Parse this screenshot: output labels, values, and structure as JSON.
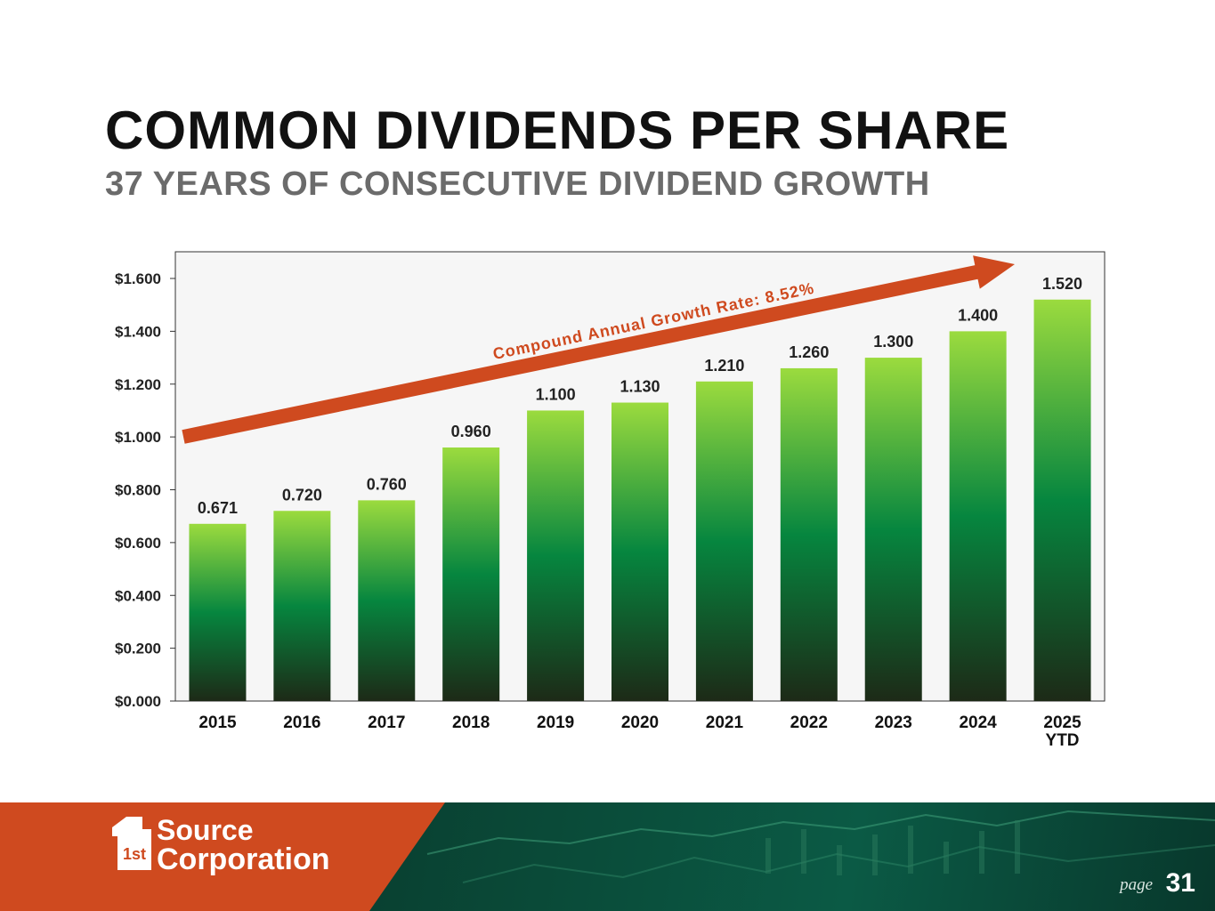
{
  "header": {
    "title": "COMMON DIVIDENDS PER SHARE",
    "subtitle": "37 YEARS OF CONSECUTIVE DIVIDEND GROWTH"
  },
  "chart_data": {
    "type": "bar",
    "categories": [
      "2015",
      "2016",
      "2017",
      "2018",
      "2019",
      "2020",
      "2021",
      "2022",
      "2023",
      "2024",
      "2025\nYTD"
    ],
    "values": [
      0.671,
      0.72,
      0.76,
      0.96,
      1.1,
      1.13,
      1.21,
      1.26,
      1.3,
      1.4,
      1.52
    ],
    "value_labels": [
      "0.671",
      "0.720",
      "0.760",
      "0.960",
      "1.100",
      "1.130",
      "1.210",
      "1.260",
      "1.300",
      "1.400",
      "1.520"
    ],
    "yticks": [
      0,
      0.2,
      0.4,
      0.6,
      0.8,
      1.0,
      1.2,
      1.4,
      1.6
    ],
    "ytick_labels": [
      "$0.000",
      "$0.200",
      "$0.400",
      "$0.600",
      "$0.800",
      "$1.000",
      "$1.200",
      "$1.400",
      "$1.600"
    ],
    "ylim": [
      0,
      1.7
    ],
    "annotation": "Compound Annual Growth Rate: 8.52%",
    "colors": {
      "bar_top": "#9bdb3e",
      "bar_mid": "#06863f",
      "bar_bottom": "#1d2a17",
      "arrow": "#cf4a1f",
      "plot_bg": "#f6f6f6"
    }
  },
  "footer": {
    "logo_top": "Source",
    "logo_bottom": "Corporation",
    "logo_prefix": "1st",
    "page_label": "page",
    "page_number": "31",
    "brand_color": "#cf4a1f"
  }
}
